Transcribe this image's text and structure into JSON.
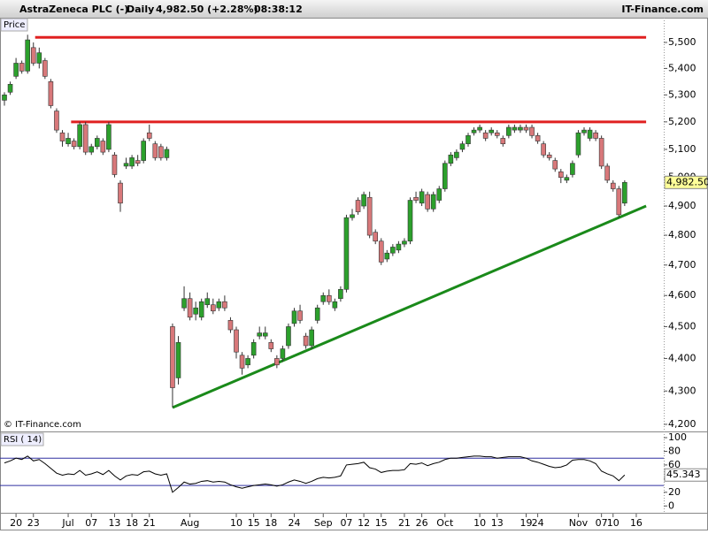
{
  "header": {
    "title": "AstraZeneca PLC (-)",
    "period": "Daily",
    "quote": "4,982.50 (+2.28%)",
    "time": "08:38:12",
    "brand": "IT-Finance.com"
  },
  "chart_data": [
    {
      "type": "candlestick",
      "panel_label": "Price",
      "copyright": "© IT-Finance.com",
      "categories": [
        null,
        null,
        "20",
        null,
        null,
        "23",
        null,
        null,
        null,
        null,
        null,
        "Jul",
        null,
        null,
        null,
        "07",
        null,
        null,
        null,
        "13",
        null,
        null,
        "18",
        null,
        null,
        "21",
        null,
        null,
        null,
        null,
        null,
        null,
        "Aug",
        null,
        null,
        null,
        null,
        null,
        null,
        null,
        "10",
        null,
        null,
        "15",
        null,
        null,
        "18",
        null,
        null,
        null,
        "24",
        null,
        null,
        null,
        null,
        "Sep",
        null,
        null,
        null,
        "07",
        null,
        null,
        "12",
        null,
        null,
        "15",
        null,
        null,
        null,
        "21",
        null,
        null,
        "26",
        null,
        null,
        null,
        "Oct",
        null,
        null,
        null,
        null,
        null,
        "10",
        null,
        null,
        "13",
        null,
        null,
        null,
        null,
        "19",
        null,
        "24",
        null,
        null,
        null,
        null,
        null,
        null,
        "Nov",
        null,
        null,
        null,
        "07",
        null,
        "10",
        null,
        null,
        null,
        "16",
        null,
        null
      ],
      "open": [
        5280,
        5310,
        5370,
        5420,
        5390,
        5480,
        5420,
        5430,
        5350,
        5240,
        5160,
        5120,
        5130,
        5110,
        5190,
        5090,
        5110,
        5130,
        5100,
        5080,
        4980,
        5040,
        5040,
        5060,
        5060,
        5160,
        5120,
        5110,
        5070,
        4500,
        4340,
        4560,
        4590,
        4540,
        4530,
        4570,
        4570,
        4560,
        4580,
        4520,
        4490,
        4410,
        4380,
        4410,
        4470,
        4470,
        4450,
        4400,
        4400,
        4440,
        4510,
        4550,
        4470,
        4440,
        4520,
        4580,
        4600,
        4560,
        4590,
        4620,
        4860,
        4920,
        4900,
        4930,
        4810,
        4780,
        4720,
        4740,
        4750,
        4770,
        4780,
        4930,
        4910,
        4940,
        4890,
        4920,
        4960,
        5050,
        5070,
        5100,
        5120,
        5160,
        5170,
        5160,
        5160,
        5160,
        5140,
        5150,
        5170,
        5170,
        5180,
        5180,
        5150,
        5120,
        5080,
        5060,
        5020,
        4990,
        5010,
        5080,
        5160,
        5140,
        5160,
        5140,
        5040,
        4980,
        4960,
        4910,
        null,
        null,
        null,
        null
      ],
      "high": [
        5310,
        5350,
        5440,
        5430,
        5530,
        5500,
        5480,
        5440,
        5360,
        5250,
        5170,
        5160,
        5140,
        5200,
        5200,
        5120,
        5150,
        5140,
        5200,
        5090,
        4990,
        5070,
        5080,
        5080,
        5140,
        5190,
        5130,
        5120,
        5110,
        4510,
        4470,
        4630,
        4610,
        4580,
        4590,
        4610,
        4590,
        4590,
        4600,
        4530,
        4500,
        4420,
        4410,
        4460,
        4500,
        4500,
        4460,
        4410,
        4440,
        4510,
        4560,
        4570,
        4480,
        4500,
        4570,
        4610,
        4620,
        4590,
        4630,
        4870,
        4890,
        4930,
        4950,
        4950,
        4820,
        4790,
        4750,
        4770,
        4780,
        4790,
        4930,
        4950,
        4960,
        4950,
        4950,
        4970,
        5060,
        5090,
        5100,
        5130,
        5160,
        5180,
        5190,
        5170,
        5180,
        5170,
        5150,
        5190,
        5190,
        5190,
        5190,
        5190,
        5160,
        5130,
        5090,
        5070,
        5030,
        5010,
        5060,
        5170,
        5180,
        5180,
        5170,
        5150,
        5050,
        4990,
        4970,
        4990,
        null,
        null,
        null,
        null
      ],
      "low": [
        5260,
        5300,
        5360,
        5380,
        5380,
        5410,
        5400,
        5360,
        5250,
        5160,
        5110,
        5110,
        5100,
        5100,
        5080,
        5080,
        5100,
        5080,
        5090,
        5000,
        4880,
        5030,
        5030,
        5040,
        5050,
        5130,
        5060,
        5060,
        5060,
        4250,
        4320,
        4550,
        4520,
        4520,
        4520,
        4560,
        4540,
        4550,
        4550,
        4480,
        4400,
        4350,
        4370,
        4400,
        4460,
        4460,
        4420,
        4370,
        4390,
        4430,
        4500,
        4510,
        4430,
        4430,
        4510,
        4570,
        4570,
        4550,
        4580,
        4610,
        4850,
        4870,
        4890,
        4790,
        4770,
        4700,
        4710,
        4730,
        4740,
        4760,
        4770,
        4910,
        4900,
        4880,
        4880,
        4910,
        4950,
        5040,
        5060,
        5090,
        5110,
        5150,
        5160,
        5130,
        5150,
        5140,
        5110,
        5140,
        5160,
        5160,
        5160,
        5140,
        5120,
        5070,
        5060,
        5020,
        4980,
        4980,
        5000,
        5070,
        5150,
        5130,
        5130,
        5030,
        4980,
        4950,
        4860,
        4900,
        null,
        null,
        null,
        null
      ],
      "close": [
        5300,
        5340,
        5420,
        5390,
        5510,
        5420,
        5460,
        5370,
        5260,
        5170,
        5130,
        5140,
        5110,
        5190,
        5090,
        5110,
        5140,
        5090,
        5190,
        5010,
        4910,
        5050,
        5070,
        5050,
        5130,
        5140,
        5070,
        5070,
        5100,
        4310,
        4450,
        4590,
        4530,
        4560,
        4580,
        4590,
        4550,
        4580,
        4560,
        4490,
        4420,
        4370,
        4400,
        4450,
        4480,
        4480,
        4430,
        4380,
        4430,
        4500,
        4550,
        4520,
        4440,
        4490,
        4560,
        4600,
        4580,
        4580,
        4620,
        4860,
        4870,
        4880,
        4940,
        4800,
        4780,
        4710,
        4740,
        4760,
        4770,
        4780,
        4920,
        4920,
        4950,
        4890,
        4940,
        4960,
        5050,
        5080,
        5090,
        5120,
        5150,
        5170,
        5180,
        5140,
        5170,
        5150,
        5120,
        5180,
        5180,
        5180,
        5170,
        5150,
        5130,
        5080,
        5070,
        5030,
        5000,
        5000,
        5050,
        5160,
        5170,
        5170,
        5140,
        5040,
        4990,
        4960,
        4870,
        4982.5,
        null,
        null,
        null,
        null
      ],
      "up_color": "#2ca02c",
      "down_color": "#d8787a",
      "log_scale": true,
      "ylim": [
        4179,
        5597
      ],
      "yticks": [
        {
          "value": 4200,
          "label": "4,200"
        },
        {
          "value": 4300,
          "label": "4,300"
        },
        {
          "value": 4400,
          "label": "4,400"
        },
        {
          "value": 4500,
          "label": "4,500"
        },
        {
          "value": 4600,
          "label": "4,600"
        },
        {
          "value": 4700,
          "label": "4,700"
        },
        {
          "value": 4800,
          "label": "4,800"
        },
        {
          "value": 4900,
          "label": "4,900"
        },
        {
          "value": 5000,
          "label": "5,000"
        },
        {
          "value": 5100,
          "label": "5,100"
        },
        {
          "value": 5200,
          "label": "5,200"
        },
        {
          "value": 5300,
          "label": "5,300"
        },
        {
          "value": 5400,
          "label": "5,400"
        },
        {
          "value": 5500,
          "label": "5,500"
        }
      ],
      "last_price": {
        "value": 4982.5,
        "label": "4,982.50"
      },
      "lines": [
        {
          "color": "#e02020",
          "x": [
            5.3,
            110.7
          ],
          "y": [
            5520,
            5520
          ]
        },
        {
          "color": "#e02020",
          "x": [
            11.5,
            110.7
          ],
          "y": [
            5200,
            5200
          ]
        },
        {
          "color": "#1a8a1a",
          "x": [
            29,
            110.7
          ],
          "y": [
            4250,
            4900
          ]
        }
      ]
    },
    {
      "type": "line",
      "panel_label": "RSI ( 14)",
      "color": "#000000",
      "values": [
        63,
        66,
        70,
        68,
        73,
        66,
        68,
        62,
        55,
        48,
        45,
        47,
        46,
        52,
        45,
        47,
        50,
        46,
        52,
        44,
        38,
        44,
        46,
        45,
        50,
        51,
        47,
        45,
        47,
        20,
        27,
        35,
        32,
        33,
        36,
        37,
        35,
        36,
        35,
        31,
        28,
        26,
        28,
        30,
        31,
        32,
        31,
        29,
        31,
        35,
        38,
        36,
        33,
        36,
        40,
        42,
        41,
        42,
        44,
        60,
        61,
        62,
        64,
        56,
        54,
        49,
        51,
        52,
        52,
        53,
        62,
        61,
        63,
        59,
        62,
        64,
        68,
        70,
        70,
        71,
        72,
        73,
        73,
        72,
        72,
        70,
        71,
        72,
        72,
        72,
        70,
        66,
        64,
        61,
        58,
        56,
        57,
        60,
        67,
        68,
        68,
        66,
        62,
        51,
        47,
        44,
        37,
        45.343,
        null,
        null,
        null,
        null
      ],
      "ylim": [
        -10,
        106.5
      ],
      "yticks": [
        0,
        20,
        40,
        60,
        80,
        100
      ],
      "levels": [
        70,
        30
      ],
      "level_color": "#3030a0",
      "last_value": 45.343
    }
  ]
}
